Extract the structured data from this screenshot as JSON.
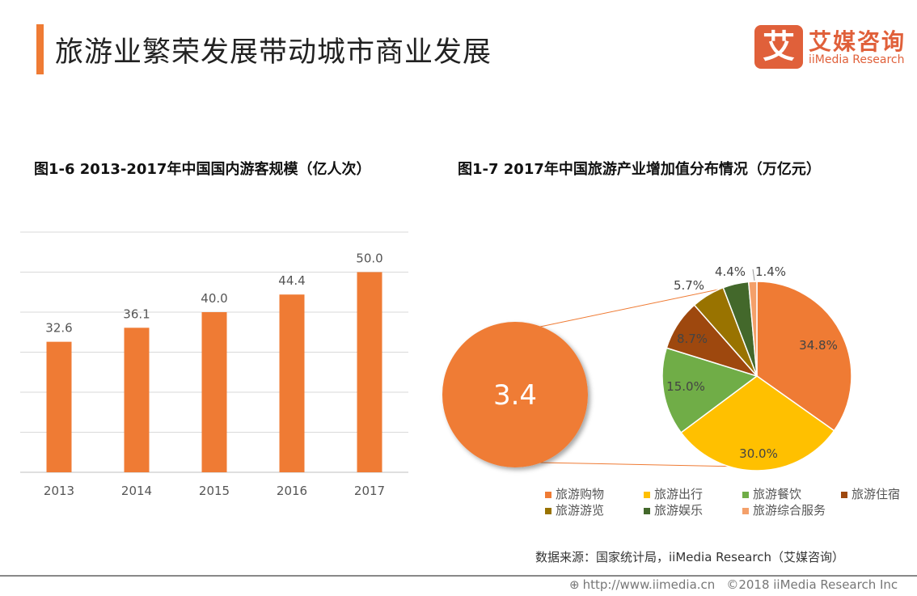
{
  "header": {
    "title": "旅游业繁荣发展带动城市商业发展"
  },
  "logo": {
    "mark": "艾",
    "cn": "艾媒咨询",
    "en": "iiMedia Research",
    "color": "#e0603a"
  },
  "chart_data": [
    {
      "type": "bar",
      "title": "图1-6 2013-2017年中国国内游客规模（亿人次）",
      "categories": [
        "2013",
        "2014",
        "2015",
        "2016",
        "2017"
      ],
      "values": [
        32.6,
        36.1,
        40.0,
        44.4,
        50.0
      ],
      "data_labels": [
        "32.6",
        "36.1",
        "40.0",
        "44.4",
        "50.0"
      ],
      "ylim": [
        0,
        60
      ],
      "grid": true,
      "color": "#ef7b34"
    },
    {
      "type": "pie",
      "title": "图1-7 2017年中国旅游产业增加值分布情况（万亿元）",
      "total_label": "3.4",
      "slices": [
        {
          "name": "旅游购物",
          "value": 34.8,
          "label": "34.8%",
          "color": "#ef7b34"
        },
        {
          "name": "旅游出行",
          "value": 30.0,
          "label": "30.0%",
          "color": "#ffc000"
        },
        {
          "name": "旅游餐饮",
          "value": 15.0,
          "label": "15.0%",
          "color": "#70ad47"
        },
        {
          "name": "旅游住宿",
          "value": 8.7,
          "label": "8.7%",
          "color": "#9e480e"
        },
        {
          "name": "旅游游览",
          "value": 5.7,
          "label": "5.7%",
          "color": "#997300"
        },
        {
          "name": "旅游娱乐",
          "value": 4.4,
          "label": "4.4%",
          "color": "#43682b"
        },
        {
          "name": "旅游综合服务",
          "value": 1.4,
          "label": "1.4%",
          "color": "#f4a06a"
        }
      ],
      "legend": "bottom"
    }
  ],
  "source": "数据来源：国家统计局，iiMedia Research（艾媒咨询）",
  "footer": {
    "url": "http://www.iimedia.cn",
    "copyright": "©2018  iiMedia Research  Inc"
  }
}
